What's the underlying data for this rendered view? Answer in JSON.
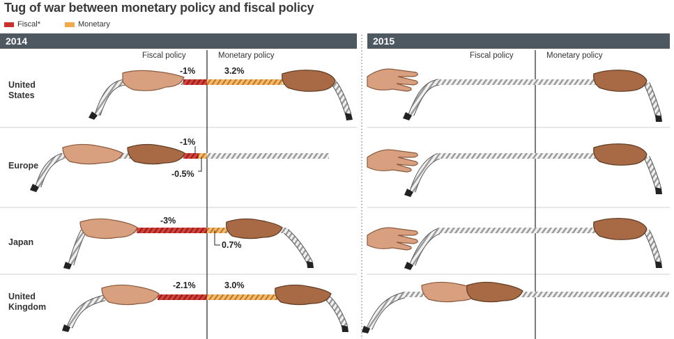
{
  "title": "Tug of war between monetary policy and fiscal policy",
  "legend": [
    {
      "label": "Fiscal*",
      "color": "#c8312d"
    },
    {
      "label": "Monetary",
      "color": "#f2a94d"
    }
  ],
  "panels": [
    {
      "year": "2014",
      "fiscal_label": "Fiscal policy",
      "monetary_label": "Monetary policy"
    },
    {
      "year": "2015",
      "fiscal_label": "Fiscal policy",
      "monetary_label": "Monetary policy"
    }
  ],
  "rows": [
    {
      "country": "United\nStates",
      "fiscal_2014": "-1%",
      "monetary_2014": "3.2%"
    },
    {
      "country": "Europe",
      "fiscal_2014": "-1%",
      "monetary_2014": "-0.5%"
    },
    {
      "country": "Japan",
      "fiscal_2014": "-3%",
      "monetary_2014": "0.7%"
    },
    {
      "country": "United\nKingdom",
      "fiscal_2014": "-2.1%",
      "monetary_2014": "3.0%"
    }
  ],
  "chart_data": {
    "type": "bar",
    "title": "Tug of war between monetary policy and fiscal policy",
    "categories": [
      "United States",
      "Europe",
      "Japan",
      "United Kingdom"
    ],
    "series": [
      {
        "name": "Fiscal*",
        "values": [
          -1,
          -1,
          -3,
          -2.1
        ]
      },
      {
        "name": "Monetary",
        "values": [
          3.2,
          -0.5,
          0.7,
          3.0
        ]
      }
    ],
    "panel": "2014"
  },
  "colors": {
    "fiscal": "#c8312d",
    "monetary": "#f2a94d",
    "header": "#4e5861",
    "hand_light": "#d9a07f",
    "hand_dark": "#a86a45",
    "rope": "#e8e8e8"
  }
}
